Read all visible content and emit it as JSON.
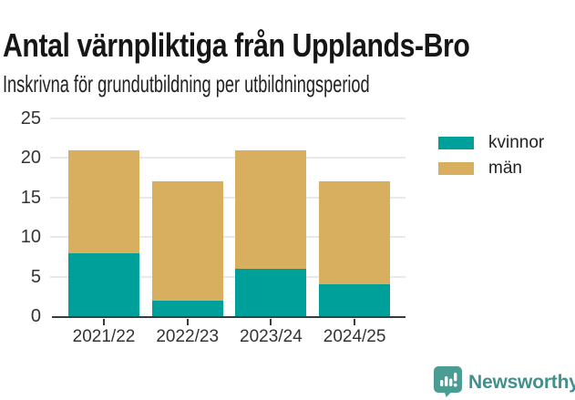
{
  "chart_data": {
    "type": "bar",
    "stacked": true,
    "title": "Antal värnpliktiga från Upplands-Bro",
    "subtitle": "Inskrivna för grundutbildning per utbildningsperiod",
    "categories": [
      "2021/22",
      "2022/23",
      "2023/24",
      "2024/25"
    ],
    "series": [
      {
        "name": "kvinnor",
        "color": "#00A09A",
        "values": [
          8,
          2,
          6,
          4
        ]
      },
      {
        "name": "män",
        "color": "#D8AF5E",
        "values": [
          13,
          15,
          15,
          13
        ]
      }
    ],
    "totals": [
      21,
      17,
      21,
      17
    ],
    "ylim": [
      0,
      25
    ],
    "yticks": [
      0,
      5,
      10,
      15,
      20,
      25
    ],
    "xlabel": "",
    "ylabel": "",
    "grid": true,
    "grid_color": "#e9e9e9",
    "axis_color": "#3b3b3b",
    "tick_label_color": "#333333",
    "legend_position": "right"
  },
  "footer": {
    "brand": "Newsworthy",
    "brand_color": "#3F908F",
    "logo_color": "#4C9C96"
  }
}
